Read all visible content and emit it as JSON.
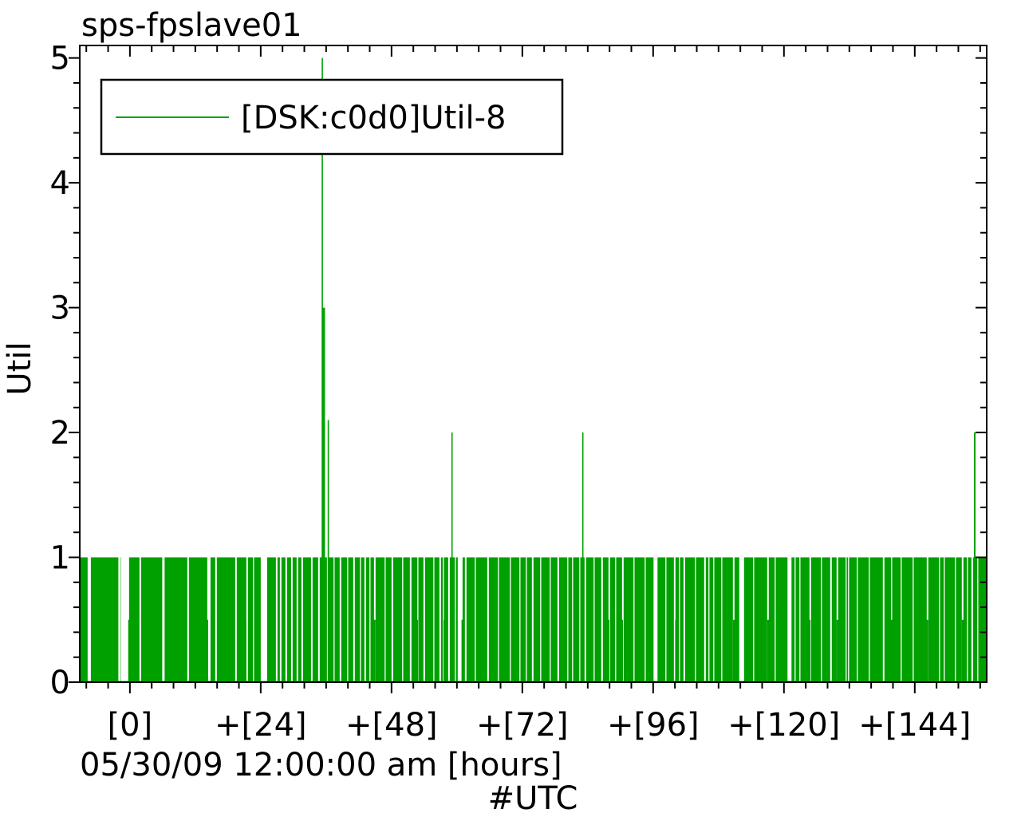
{
  "chart_data": {
    "type": "impulse",
    "title": "sps-fpslave01",
    "ylabel": "Util",
    "x_sub_label": "05/30/09 12:00:00 am [hours]",
    "x_axis_label": "#UTC",
    "legend": {
      "label": "[DSK:c0d0]Util-8",
      "position": "top-left"
    },
    "series_color": "#00a000",
    "background_color": "#ffffff",
    "x_axis": {
      "tick_labels": [
        "[0]",
        "+[24]",
        "+[48]",
        "+[72]",
        "+[96]",
        "+[120]",
        "+[144]"
      ],
      "tick_hours": [
        0,
        24,
        48,
        72,
        96,
        120,
        144
      ],
      "minor_step_hours": 4,
      "range_hours": [
        -9.2,
        157.2
      ]
    },
    "y_axis": {
      "tick_labels": [
        "0",
        "1",
        "2",
        "3",
        "4",
        "5"
      ],
      "tick_values": [
        0,
        1,
        2,
        3,
        4,
        5
      ],
      "minor_step": 0.2,
      "range": [
        0,
        5.1
      ]
    },
    "baseline_band": {
      "value": 1.0,
      "note": "dense impulses at Util=1 across entire time range"
    },
    "gaps_hours": [
      [
        -7.46,
        0.59
      ],
      [
        -1.9,
        0.44
      ],
      [
        -0.88,
        1.46
      ],
      [
        1.9,
        0.29
      ],
      [
        6.15,
        0.44
      ],
      [
        10.68,
        0.29
      ],
      [
        14.49,
        0.59
      ],
      [
        15.8,
        0.29
      ],
      [
        19.46,
        0.29
      ],
      [
        21.51,
        0.29
      ],
      [
        22.68,
        0.15
      ],
      [
        24.59,
        1.17
      ],
      [
        26.93,
        0.29
      ],
      [
        27.66,
        0.29
      ],
      [
        28.68,
        0.29
      ],
      [
        29.71,
        0.29
      ],
      [
        30.73,
        0.29
      ],
      [
        31.61,
        0.29
      ],
      [
        33.37,
        0.29
      ],
      [
        34.68,
        0.29
      ],
      [
        36.29,
        0.29
      ],
      [
        37.46,
        0.15
      ],
      [
        38.63,
        0.29
      ],
      [
        39.95,
        0.15
      ],
      [
        41.12,
        0.29
      ],
      [
        42.29,
        0.15
      ],
      [
        43.17,
        0.29
      ],
      [
        44.05,
        0.15
      ],
      [
        44.93,
        0.29
      ],
      [
        46.83,
        0.15
      ],
      [
        48.15,
        0.29
      ],
      [
        50.05,
        0.15
      ],
      [
        51.51,
        0.29
      ],
      [
        52.83,
        0.15
      ],
      [
        54.0,
        0.29
      ],
      [
        55.76,
        0.15
      ],
      [
        56.93,
        0.29
      ],
      [
        57.51,
        0.15
      ],
      [
        58.54,
        0.29
      ],
      [
        59.71,
        0.15
      ],
      [
        60.59,
        0.88
      ],
      [
        61.61,
        0.29
      ],
      [
        63.37,
        0.15
      ],
      [
        65.71,
        0.29
      ],
      [
        67.61,
        0.15
      ],
      [
        69.8,
        0.15
      ],
      [
        71.56,
        0.15
      ],
      [
        72.73,
        0.15
      ],
      [
        73.9,
        0.29
      ],
      [
        75.37,
        0.15
      ],
      [
        77.12,
        0.15
      ],
      [
        78.59,
        0.29
      ],
      [
        80.34,
        0.15
      ],
      [
        81.22,
        0.15
      ],
      [
        82.54,
        0.15
      ],
      [
        83.56,
        0.29
      ],
      [
        85.17,
        0.15
      ],
      [
        86.63,
        0.29
      ],
      [
        87.95,
        0.29
      ],
      [
        89.12,
        0.15
      ],
      [
        90.44,
        0.29
      ],
      [
        92.49,
        0.15
      ],
      [
        94.54,
        0.15
      ],
      [
        96.44,
        0.73
      ],
      [
        98.34,
        0.15
      ],
      [
        99.95,
        0.29
      ],
      [
        100.83,
        0.15
      ],
      [
        101.71,
        0.29
      ],
      [
        103.76,
        0.15
      ],
      [
        105.51,
        0.29
      ],
      [
        106.24,
        0.15
      ],
      [
        107.12,
        0.15
      ],
      [
        108.59,
        0.15
      ],
      [
        110.78,
        0.29
      ],
      [
        112.24,
        0.88
      ],
      [
        114.44,
        0.15
      ],
      [
        117.07,
        0.29
      ],
      [
        118.39,
        0.15
      ],
      [
        121.02,
        0.73
      ],
      [
        122.05,
        0.15
      ],
      [
        122.93,
        0.15
      ],
      [
        124.83,
        0.29
      ],
      [
        126.88,
        0.15
      ],
      [
        128.63,
        0.29
      ],
      [
        129.8,
        0.29
      ],
      [
        131.41,
        0.15
      ],
      [
        131.85,
        0.15
      ],
      [
        133.46,
        0.15
      ],
      [
        135.66,
        0.15
      ],
      [
        138.29,
        0.29
      ],
      [
        139.76,
        0.15
      ],
      [
        141.51,
        0.15
      ],
      [
        143.71,
        0.15
      ],
      [
        146.34,
        0.29
      ],
      [
        148.54,
        0.15
      ],
      [
        149.41,
        0.15
      ],
      [
        151.46,
        0.15
      ],
      [
        152.78,
        0.29
      ],
      [
        153.66,
        0.15
      ],
      [
        154.54,
        0.29
      ],
      [
        155.56,
        0.15
      ]
    ],
    "half_impulses_hours": [
      -0.15,
      14.2,
      21.2,
      29.3,
      44.9,
      52.7,
      57.7,
      61.0,
      87.8,
      90.3,
      100.2,
      110.8,
      117.1,
      124.7,
      129.8,
      139.8,
      146.3,
      152.8
    ],
    "half_impulse_value": 0.5,
    "spikes": [
      {
        "x": 35.3,
        "v": 5.0
      },
      {
        "x": 35.5,
        "v": 3.0,
        "w": 4
      },
      {
        "x": 36.4,
        "v": 2.1
      },
      {
        "x": 59.1,
        "v": 2.0
      },
      {
        "x": 83.1,
        "v": 2.0
      },
      {
        "x": 155.0,
        "v": 2.0,
        "w": 2
      }
    ]
  }
}
